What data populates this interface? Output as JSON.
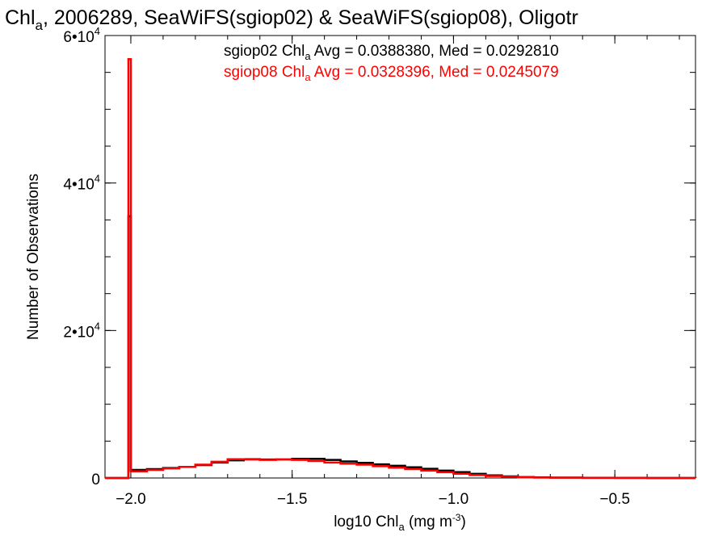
{
  "chart_data": {
    "type": "histogram-step",
    "title": {
      "prefix": "Chl",
      "sub": "a",
      "suffix": ", 2006289, SeaWiFS(sgiop02) & SeaWiFS(sgiop08), Oligotr"
    },
    "xlabel": {
      "prefix": "log10 Chl",
      "sub": "a",
      "mid": " (mg m",
      "sup": "-3",
      "suffix": ")"
    },
    "ylabel": "Number of Observations",
    "xlim": [
      -2.08,
      -0.25
    ],
    "ylim": [
      0,
      60000
    ],
    "x_ticks": [
      {
        "value": -2.0,
        "label": "−2.0"
      },
      {
        "value": -1.5,
        "label": "−1.5"
      },
      {
        "value": -1.0,
        "label": "−1.0"
      },
      {
        "value": -0.5,
        "label": "−0.5"
      }
    ],
    "x_minor_step": 0.1,
    "y_ticks": [
      {
        "value": 0,
        "base": "0",
        "exp": ""
      },
      {
        "value": 20000,
        "base": "2•10",
        "exp": "4"
      },
      {
        "value": 40000,
        "base": "4•10",
        "exp": "4"
      },
      {
        "value": 60000,
        "base": "6•10",
        "exp": "4"
      }
    ],
    "y_minor_step": 5000,
    "series": [
      {
        "name": "sgiop02",
        "color": "#000000",
        "legend": {
          "prefix": "sgiop02 Chl",
          "sub": "a",
          "suffix": " Avg = 0.0388380, Med = 0.0292810"
        },
        "spike": {
          "x": -2.0,
          "y": 35500
        },
        "points": [
          [
            -2.0,
            1100
          ],
          [
            -1.95,
            1200
          ],
          [
            -1.9,
            1350
          ],
          [
            -1.85,
            1500
          ],
          [
            -1.8,
            1750
          ],
          [
            -1.75,
            2100
          ],
          [
            -1.7,
            2400
          ],
          [
            -1.65,
            2550
          ],
          [
            -1.6,
            2500
          ],
          [
            -1.55,
            2520
          ],
          [
            -1.5,
            2600
          ],
          [
            -1.45,
            2600
          ],
          [
            -1.4,
            2450
          ],
          [
            -1.35,
            2250
          ],
          [
            -1.3,
            2050
          ],
          [
            -1.25,
            1850
          ],
          [
            -1.2,
            1650
          ],
          [
            -1.15,
            1450
          ],
          [
            -1.1,
            1250
          ],
          [
            -1.05,
            1000
          ],
          [
            -1.0,
            800
          ],
          [
            -0.95,
            560
          ],
          [
            -0.9,
            360
          ],
          [
            -0.85,
            220
          ],
          [
            -0.8,
            130
          ],
          [
            -0.75,
            80
          ],
          [
            -0.7,
            50
          ],
          [
            -0.6,
            25
          ],
          [
            -0.5,
            10
          ],
          [
            -0.4,
            5
          ],
          [
            -0.25,
            0
          ]
        ]
      },
      {
        "name": "sgiop08",
        "color": "#ff0000",
        "legend": {
          "prefix": "sgiop08 Chl",
          "sub": "a",
          "suffix": " Avg = 0.0328396, Med = 0.0245079"
        },
        "spike": {
          "x": -2.0,
          "y": 56800
        },
        "points": [
          [
            -2.0,
            900
          ],
          [
            -1.95,
            1100
          ],
          [
            -1.9,
            1300
          ],
          [
            -1.85,
            1500
          ],
          [
            -1.8,
            1800
          ],
          [
            -1.75,
            2200
          ],
          [
            -1.7,
            2550
          ],
          [
            -1.65,
            2500
          ],
          [
            -1.6,
            2450
          ],
          [
            -1.55,
            2500
          ],
          [
            -1.5,
            2450
          ],
          [
            -1.45,
            2300
          ],
          [
            -1.4,
            2100
          ],
          [
            -1.35,
            1950
          ],
          [
            -1.3,
            1800
          ],
          [
            -1.25,
            1600
          ],
          [
            -1.2,
            1400
          ],
          [
            -1.15,
            1200
          ],
          [
            -1.1,
            1000
          ],
          [
            -1.05,
            780
          ],
          [
            -1.0,
            580
          ],
          [
            -0.95,
            400
          ],
          [
            -0.9,
            260
          ],
          [
            -0.85,
            160
          ],
          [
            -0.8,
            100
          ],
          [
            -0.75,
            60
          ],
          [
            -0.7,
            40
          ],
          [
            -0.6,
            20
          ],
          [
            -0.5,
            10
          ],
          [
            -0.4,
            5
          ],
          [
            -0.25,
            0
          ]
        ]
      }
    ]
  }
}
